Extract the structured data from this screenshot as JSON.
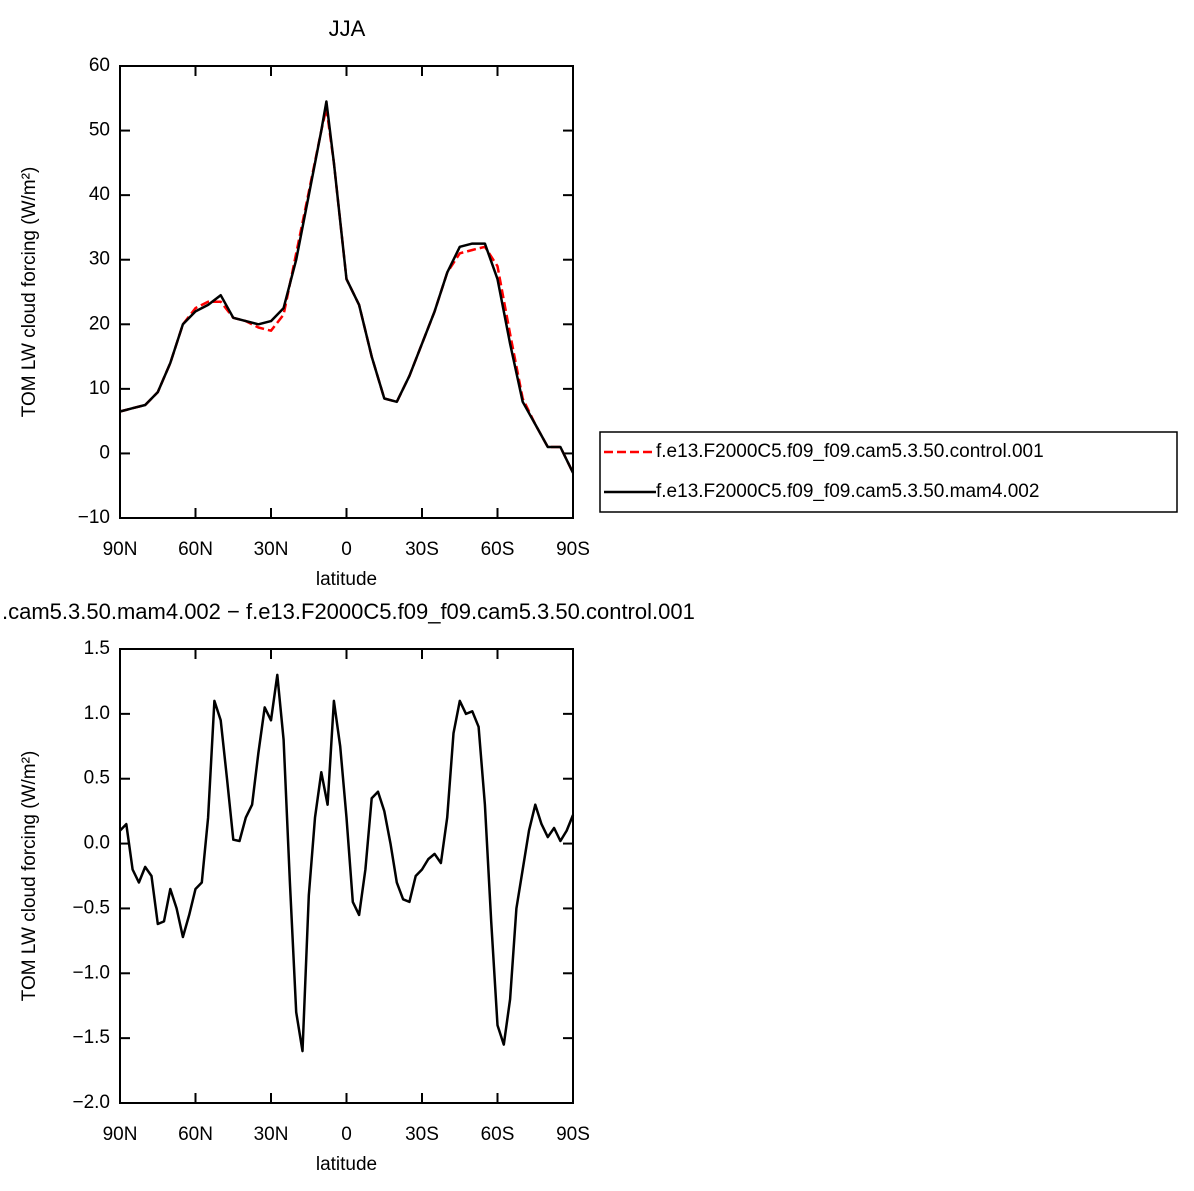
{
  "chart_data": [
    {
      "type": "line",
      "title": "JJA",
      "x_label": "latitude",
      "y_label": "TOM LW cloud forcing (W/m²)",
      "x": [
        90,
        85,
        80,
        75,
        70,
        65,
        60,
        55,
        50,
        45,
        40,
        35,
        30,
        25,
        20,
        15,
        10,
        8,
        5,
        0,
        -5,
        -10,
        -15,
        -20,
        -25,
        -30,
        -35,
        -40,
        -45,
        -50,
        -55,
        -60,
        -65,
        -70,
        -75,
        -80,
        -85,
        -90
      ],
      "series": [
        {
          "name": "f.e13.F2000C5.f09_f09.cam5.3.50.control.001",
          "color": "#ff0000",
          "dash": true,
          "values": [
            6.5,
            7,
            7.5,
            9.5,
            14,
            20,
            22.5,
            23.5,
            23.5,
            21,
            20.5,
            19.5,
            19,
            21.5,
            31,
            40.5,
            50,
            53.5,
            45,
            27,
            23,
            15,
            8.5,
            8,
            12,
            17,
            22,
            28,
            31,
            31.5,
            32,
            29,
            18.5,
            8.5,
            4.5,
            1,
            1,
            -3
          ]
        },
        {
          "name": "f.e13.F2000C5.f09_f09.cam5.3.50.mam4.002",
          "color": "#000000",
          "dash": false,
          "values": [
            6.5,
            7,
            7.5,
            9.5,
            14,
            20,
            22,
            23,
            24.5,
            21,
            20.5,
            20,
            20.5,
            22.5,
            30,
            40,
            50,
            54.5,
            45,
            27,
            23,
            15,
            8.5,
            8,
            12,
            17,
            22,
            28,
            32,
            32.5,
            32.5,
            27,
            17,
            8,
            4.5,
            1,
            1,
            -3
          ]
        }
      ],
      "xlim": [
        90,
        -90
      ],
      "xticks": [
        {
          "value": 90,
          "label": "90N"
        },
        {
          "value": 60,
          "label": "60N"
        },
        {
          "value": 30,
          "label": "30N"
        },
        0,
        {
          "value": -30,
          "label": "30S"
        },
        {
          "value": -60,
          "label": "60S"
        },
        {
          "value": -90,
          "label": "90S"
        }
      ],
      "ylim": [
        -10,
        60
      ],
      "yticks": [
        {
          "value": -10,
          "label": "−10"
        },
        0,
        10,
        20,
        30,
        40,
        50,
        60
      ]
    },
    {
      "type": "line",
      "title": ".cam5.3.50.mam4.002 − f.e13.F2000C5.f09_f09.cam5.3.50.control.001",
      "x_label": "latitude",
      "y_label": "TOM LW cloud forcing (W/m²)",
      "x": [
        90,
        87.5,
        85,
        82.5,
        80,
        77.5,
        75,
        72.5,
        70,
        67.5,
        65,
        62.5,
        60,
        57.5,
        55,
        52.5,
        50,
        47.5,
        45,
        42.5,
        40,
        37.5,
        35,
        32.5,
        30,
        27.5,
        25,
        22.5,
        20,
        17.5,
        15,
        12.5,
        10,
        7.5,
        5,
        2.5,
        0,
        -2.5,
        -5,
        -7.5,
        -10,
        -12.5,
        -15,
        -17.5,
        -20,
        -22.5,
        -25,
        -27.5,
        -30,
        -32.5,
        -35,
        -37.5,
        -40,
        -42.5,
        -45,
        -47.5,
        -50,
        -52.5,
        -55,
        -57.5,
        -60,
        -62.5,
        -65,
        -67.5,
        -70,
        -72.5,
        -75,
        -77.5,
        -80,
        -82.5,
        -85,
        -87.5,
        -90
      ],
      "series": [
        {
          "name": null,
          "color": "#000000",
          "dash": false,
          "values": [
            0.1,
            0.15,
            -0.2,
            -0.3,
            -0.18,
            -0.25,
            -0.62,
            -0.6,
            -0.35,
            -0.5,
            -0.72,
            -0.55,
            -0.35,
            -0.3,
            0.2,
            1.1,
            0.95,
            0.5,
            0.03,
            0.02,
            0.2,
            0.3,
            0.7,
            1.05,
            0.95,
            1.3,
            0.8,
            -0.3,
            -1.3,
            -1.6,
            -0.4,
            0.2,
            0.55,
            0.3,
            1.1,
            0.75,
            0.2,
            -0.45,
            -0.55,
            -0.2,
            0.35,
            0.4,
            0.25,
            0,
            -0.3,
            -0.43,
            -0.45,
            -0.25,
            -0.2,
            -0.12,
            -0.08,
            -0.15,
            0.2,
            0.85,
            1.1,
            1.0,
            1.02,
            0.9,
            0.3,
            -0.6,
            -1.4,
            -1.55,
            -1.2,
            -0.5,
            -0.2,
            0.1,
            0.3,
            0.15,
            0.05,
            0.12,
            0.02,
            0.1,
            0.22
          ]
        }
      ],
      "xlim": [
        90,
        -90
      ],
      "xticks": [
        {
          "value": 90,
          "label": "90N"
        },
        {
          "value": 60,
          "label": "60N"
        },
        {
          "value": 30,
          "label": "30N"
        },
        0,
        {
          "value": -30,
          "label": "30S"
        },
        {
          "value": -60,
          "label": "60S"
        },
        {
          "value": -90,
          "label": "90S"
        }
      ],
      "ylim": [
        -2.0,
        1.5
      ],
      "yticks": [
        {
          "value": -2.0,
          "label": "−2.0"
        },
        {
          "value": -1.5,
          "label": "−1.5"
        },
        {
          "value": -1.0,
          "label": "−1.0"
        },
        {
          "value": -0.5,
          "label": "−0.5"
        },
        {
          "value": 0,
          "label": "0.0"
        },
        0.5,
        {
          "value": 1.0,
          "label": "1.0"
        },
        1.5
      ]
    }
  ]
}
